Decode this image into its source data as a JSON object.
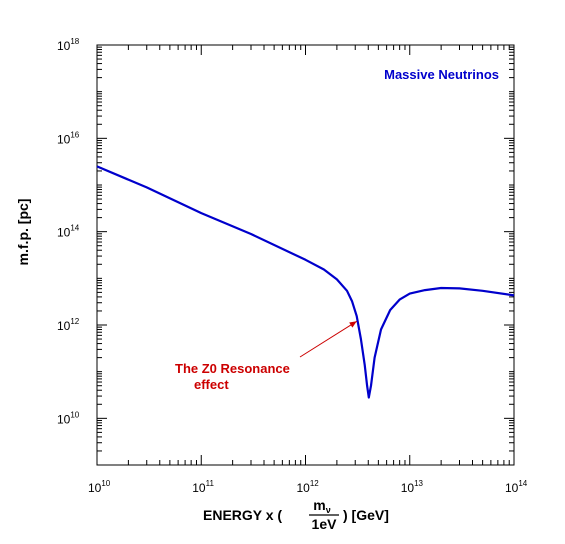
{
  "chart_data": {
    "type": "line",
    "title": "",
    "xlabel": {
      "prefix": "ENERGY x (",
      "frac_num": "m",
      "frac_num_sub": "ν",
      "frac_den": "1eV",
      "suffix": ")  [GeV]"
    },
    "ylabel": "m.f.p.  [pc]",
    "xscale": "log",
    "yscale": "log",
    "xlim": [
      10000000000.0,
      100000000000000.0
    ],
    "ylim": [
      1000000000.0,
      1e+18
    ],
    "x_ticks": [
      {
        "base": "10",
        "exp": "10"
      },
      {
        "base": "10",
        "exp": "11"
      },
      {
        "base": "10",
        "exp": "12"
      },
      {
        "base": "10",
        "exp": "13"
      },
      {
        "base": "10",
        "exp": "14"
      }
    ],
    "y_ticks": [
      {
        "base": "10",
        "exp": "10"
      },
      {
        "base": "10",
        "exp": "12"
      },
      {
        "base": "10",
        "exp": "14"
      },
      {
        "base": "10",
        "exp": "16"
      },
      {
        "base": "10",
        "exp": "18"
      }
    ],
    "grid": false,
    "series": [
      {
        "name": "Massive Neutrinos",
        "color": "#0000cc",
        "x": [
          10000000000.0,
          30000000000.0,
          100000000000.0,
          300000000000.0,
          1000000000000.0,
          1500000000000.0,
          2000000000000.0,
          2500000000000.0,
          2800000000000.0,
          3100000000000.0,
          3400000000000.0,
          3700000000000.0,
          3900000000000.0,
          4050000000000.0,
          4250000000000.0,
          4600000000000.0,
          5300000000000.0,
          6500000000000.0,
          8000000000000.0,
          10000000000000.0,
          14000000000000.0,
          20000000000000.0,
          30000000000000.0,
          50000000000000.0,
          100000000000000.0
        ],
        "y": [
          2500000000000000.0,
          890000000000000.0,
          250000000000000.0,
          89000000000000.0,
          25000000000000.0,
          15500000000000.0,
          9500000000000.0,
          5400000000000.0,
          3200000000000.0,
          1550000000000.0,
          500000000000.0,
          140000000000.0,
          50000000000.0,
          28000000000.0,
          50000000000.0,
          200000000000.0,
          800000000000.0,
          2100000000000.0,
          3500000000000.0,
          4700000000000.0,
          5600000000000.0,
          6200000000000.0,
          6100000000000.0,
          5400000000000.0,
          4300000000000.0
        ]
      }
    ],
    "legend": {
      "text": "Massive Neutrinos",
      "placement": "top-right"
    },
    "annotation": {
      "lines": [
        "The Z0 Resonance",
        "effect"
      ],
      "color": "#cc0000",
      "arrow_target": {
        "x": 3100000000000.0,
        "y": 1200000000000.0
      }
    }
  }
}
